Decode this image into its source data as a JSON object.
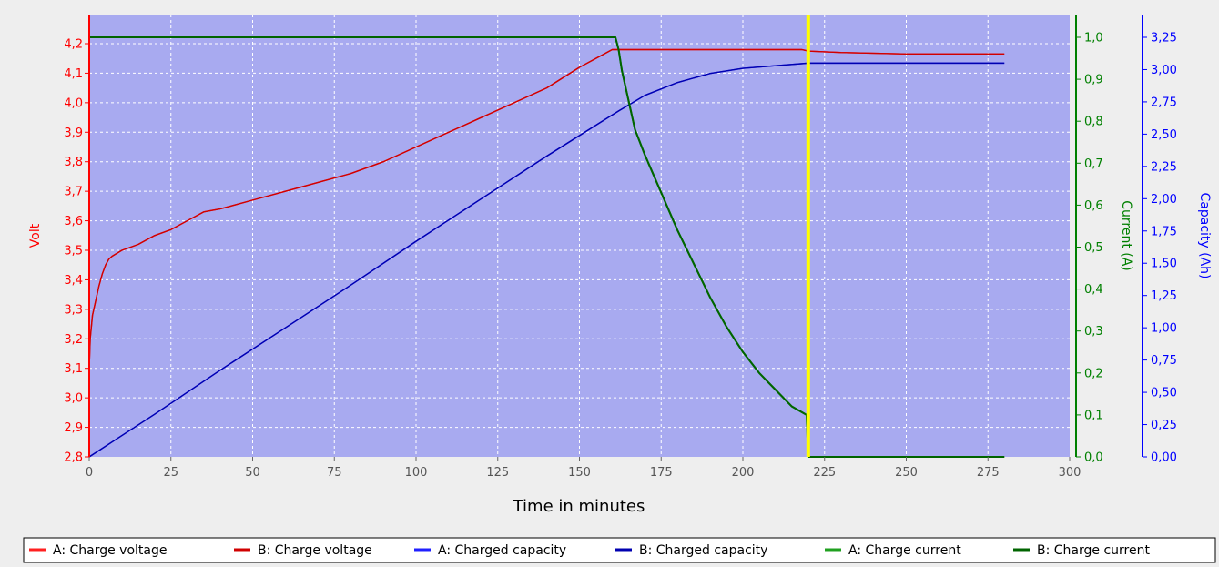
{
  "chart_data": {
    "type": "line",
    "xlabel": "Time in minutes",
    "xlim": [
      0,
      300
    ],
    "x_ticks": [
      "0",
      "25",
      "50",
      "75",
      "100",
      "125",
      "150",
      "175",
      "200",
      "225",
      "250",
      "275",
      "300"
    ],
    "grid": true,
    "legend_position": "bottom",
    "axes": {
      "volt": {
        "label": "Volt",
        "ylim": [
          2.8,
          4.2
        ],
        "color": "#ff0000",
        "ticks": [
          "2,8",
          "2,9",
          "3,0",
          "3,1",
          "3,2",
          "3,3",
          "3,4",
          "3,5",
          "3,6",
          "3,7",
          "3,8",
          "3,9",
          "4,0",
          "4,1",
          "4,2"
        ]
      },
      "current": {
        "label": "Current (A)",
        "ylim": [
          0.0,
          1.0
        ],
        "color": "#008000",
        "ticks": [
          "0,0",
          "0,1",
          "0,2",
          "0,3",
          "0,4",
          "0,5",
          "0,6",
          "0,7",
          "0,8",
          "0,9",
          "1,0"
        ]
      },
      "capacity": {
        "label": "Capacity (Ah)",
        "ylim": [
          0.0,
          3.25
        ],
        "color": "#0000ff",
        "ticks": [
          "0,00",
          "0,25",
          "0,50",
          "0,75",
          "1,00",
          "1,25",
          "1,50",
          "1,75",
          "2,00",
          "2,25",
          "2,50",
          "2,75",
          "3,00",
          "3,25"
        ]
      }
    },
    "marker_line": {
      "x": 220,
      "color": "#ffff00"
    },
    "series": [
      {
        "name": "A: Charge voltage",
        "axis": "volt",
        "color": "#ff2020",
        "x": [
          0,
          0.3,
          1,
          2,
          3,
          4,
          5,
          6,
          7,
          10,
          15,
          20,
          25,
          30,
          35,
          40,
          50,
          60,
          70,
          80,
          90,
          100,
          110,
          120,
          130,
          140,
          150,
          155,
          160,
          162,
          170,
          190,
          210,
          218,
          220,
          230,
          250,
          280
        ],
        "y": [
          3.1,
          3.2,
          3.28,
          3.33,
          3.38,
          3.42,
          3.45,
          3.47,
          3.48,
          3.5,
          3.52,
          3.55,
          3.57,
          3.6,
          3.63,
          3.64,
          3.67,
          3.7,
          3.73,
          3.76,
          3.8,
          3.85,
          3.9,
          3.95,
          4.0,
          4.05,
          4.12,
          4.15,
          4.18,
          4.18,
          4.18,
          4.18,
          4.18,
          4.18,
          4.175,
          4.17,
          4.165,
          4.165
        ]
      },
      {
        "name": "B: Charge voltage",
        "axis": "volt",
        "color": "#d00000",
        "x": [
          0,
          0.3,
          1,
          2,
          3,
          4,
          5,
          6,
          7,
          10,
          15,
          20,
          25,
          30,
          35,
          40,
          50,
          60,
          70,
          80,
          90,
          100,
          110,
          120,
          130,
          140,
          150,
          155,
          160,
          162,
          170,
          190,
          210,
          218,
          220,
          230,
          250,
          280
        ],
        "y": [
          3.1,
          3.2,
          3.28,
          3.33,
          3.38,
          3.42,
          3.45,
          3.47,
          3.48,
          3.5,
          3.52,
          3.55,
          3.57,
          3.6,
          3.63,
          3.64,
          3.67,
          3.7,
          3.73,
          3.76,
          3.8,
          3.85,
          3.9,
          3.95,
          4.0,
          4.05,
          4.12,
          4.15,
          4.18,
          4.18,
          4.18,
          4.18,
          4.18,
          4.18,
          4.175,
          4.17,
          4.165,
          4.165
        ]
      },
      {
        "name": "A: Charged capacity",
        "axis": "capacity",
        "color": "#2020ff",
        "x": [
          0,
          20,
          40,
          60,
          80,
          100,
          120,
          140,
          162,
          170,
          180,
          190,
          200,
          210,
          220,
          230,
          250,
          280
        ],
        "y": [
          0.0,
          0.33,
          0.67,
          1.0,
          1.33,
          1.67,
          2.0,
          2.33,
          2.68,
          2.8,
          2.9,
          2.97,
          3.01,
          3.03,
          3.05,
          3.05,
          3.05,
          3.05
        ]
      },
      {
        "name": "B: Charged capacity",
        "axis": "capacity",
        "color": "#0000b0",
        "x": [
          0,
          20,
          40,
          60,
          80,
          100,
          120,
          140,
          162,
          170,
          180,
          190,
          200,
          210,
          220,
          230,
          250,
          280
        ],
        "y": [
          0.0,
          0.33,
          0.67,
          1.0,
          1.33,
          1.67,
          2.0,
          2.33,
          2.68,
          2.8,
          2.9,
          2.97,
          3.01,
          3.03,
          3.05,
          3.05,
          3.05,
          3.05
        ]
      },
      {
        "name": "A: Charge current",
        "axis": "current",
        "color": "#20a020",
        "x": [
          0,
          161,
          162,
          163,
          165,
          167,
          170,
          175,
          180,
          185,
          190,
          195,
          200,
          205,
          210,
          215,
          219.5,
          220,
          225,
          250,
          280
        ],
        "y": [
          1.0,
          1.0,
          0.97,
          0.92,
          0.85,
          0.78,
          0.72,
          0.63,
          0.54,
          0.46,
          0.38,
          0.31,
          0.25,
          0.2,
          0.16,
          0.12,
          0.1,
          0.0,
          0.0,
          0.0,
          0.0
        ]
      },
      {
        "name": "B: Charge current",
        "axis": "current",
        "color": "#006400",
        "x": [
          0,
          161,
          162,
          163,
          165,
          167,
          170,
          175,
          180,
          185,
          190,
          195,
          200,
          205,
          210,
          215,
          219.5,
          220,
          225,
          250,
          280
        ],
        "y": [
          1.0,
          1.0,
          0.97,
          0.92,
          0.85,
          0.78,
          0.72,
          0.63,
          0.54,
          0.46,
          0.38,
          0.31,
          0.25,
          0.2,
          0.16,
          0.12,
          0.1,
          0.0,
          0.0,
          0.0,
          0.0
        ]
      }
    ]
  }
}
